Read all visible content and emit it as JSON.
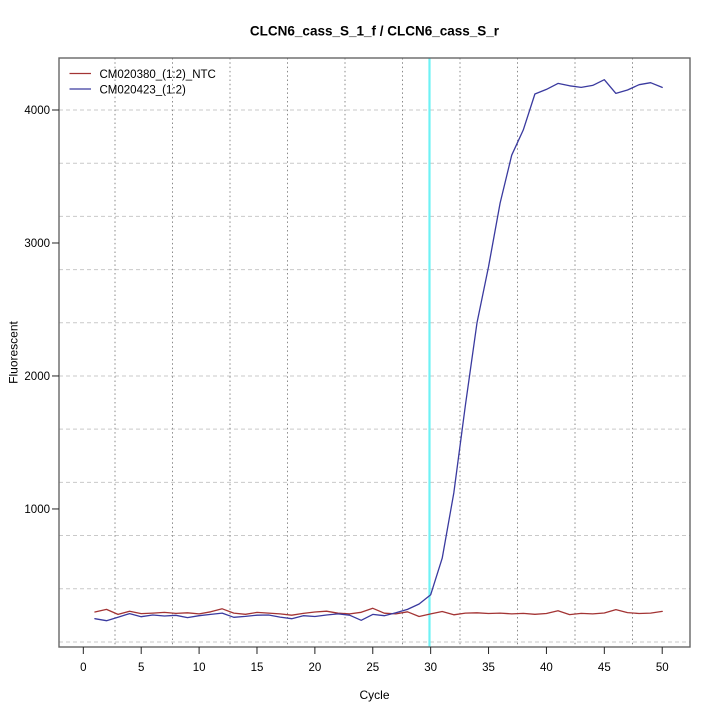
{
  "title": "CLCN6_cass_S_1_f / CLCN6_cass_S_r",
  "chart_data": {
    "type": "line",
    "title": "CLCN6_cass_S_1_f / CLCN6_cass_S_r",
    "xlabel": "Cycle",
    "ylabel": "Fluorescent",
    "x_ticks": [
      0,
      5,
      10,
      15,
      20,
      25,
      30,
      35,
      40,
      45,
      50
    ],
    "y_ticks": [
      1000,
      2000,
      3000,
      4000
    ],
    "xlim": [
      -2.1,
      52.4
    ],
    "ylim": [
      -38,
      4391
    ],
    "grid": {
      "h_dash_color": "#c9c9c9",
      "h_values_step": 400,
      "h_values_max": 4000,
      "v_dot_color": "#8a8a8a",
      "on": true
    },
    "threshold_line": {
      "cycle": 29.9,
      "color": "#6ef2f5"
    },
    "legend_position": "top-left",
    "x_first_cycle": 1,
    "x_step": 1,
    "series": [
      {
        "name": "CM020380_(1:2)_NTC",
        "color": "#a33434",
        "values": [
          225,
          245,
          207,
          231,
          213,
          217,
          222,
          215,
          219,
          211,
          227,
          249,
          217,
          208,
          222,
          217,
          211,
          201,
          215,
          225,
          231,
          216,
          211,
          223,
          253,
          216,
          211,
          227,
          191,
          211,
          229,
          204,
          217,
          219,
          214,
          217,
          211,
          215,
          208,
          214,
          235,
          206,
          215,
          211,
          218,
          243,
          221,
          214,
          217,
          230
        ]
      },
      {
        "name": "CM020423_(1:2)",
        "color": "#3a3a9f",
        "values": [
          175,
          160,
          185,
          213,
          190,
          203,
          195,
          200,
          183,
          197,
          207,
          217,
          185,
          192,
          201,
          203,
          187,
          175,
          197,
          191,
          203,
          211,
          201,
          163,
          207,
          197,
          220,
          245,
          285,
          355,
          630,
          1120,
          1780,
          2400,
          2820,
          3300,
          3660,
          3850,
          4120,
          4155,
          4200,
          4182,
          4170,
          4185,
          4228,
          4125,
          4150,
          4190,
          4205,
          4170
        ]
      }
    ]
  }
}
